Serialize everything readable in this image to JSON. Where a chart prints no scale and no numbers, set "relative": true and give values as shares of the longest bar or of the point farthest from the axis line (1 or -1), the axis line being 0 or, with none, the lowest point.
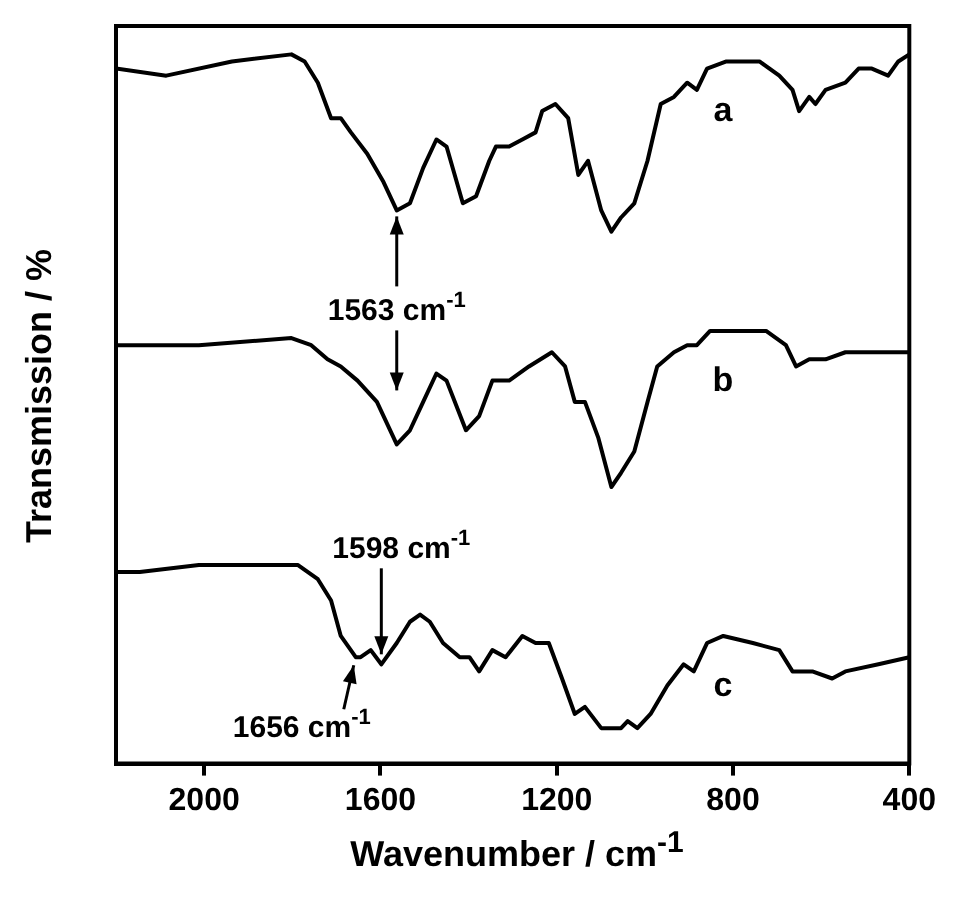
{
  "chart_data": {
    "type": "line",
    "xlabel": "Wavenumber / cm$^{-1}$",
    "ylabel": "Transmission / %",
    "relative": true,
    "xlim": [
      2200,
      400
    ],
    "xticks": [
      2000,
      1600,
      1200,
      800,
      400
    ],
    "grid": false,
    "legend": false,
    "marker": "none",
    "line_style": "solid",
    "series": [
      {
        "name": "a",
        "color": "#000000",
        "x": [
          2200,
          2086,
          1937,
          1802,
          1772,
          1742,
          1712,
          1690,
          1667,
          1630,
          1593,
          1563,
          1533,
          1503,
          1473,
          1450,
          1413,
          1383,
          1353,
          1338,
          1308,
          1278,
          1248,
          1233,
          1203,
          1174,
          1151,
          1129,
          1099,
          1076,
          1054,
          1024,
          994,
          964,
          934,
          904,
          882,
          859,
          815,
          740,
          695,
          665,
          650,
          627,
          613,
          590,
          545,
          515,
          485,
          448,
          425,
          400
        ],
        "values": [
          0.98,
          0.97,
          0.99,
          1.0,
          0.99,
          0.96,
          0.91,
          0.91,
          0.89,
          0.86,
          0.82,
          0.78,
          0.79,
          0.84,
          0.88,
          0.87,
          0.79,
          0.8,
          0.85,
          0.87,
          0.87,
          0.88,
          0.89,
          0.92,
          0.93,
          0.91,
          0.83,
          0.85,
          0.78,
          0.75,
          0.77,
          0.79,
          0.85,
          0.93,
          0.94,
          0.96,
          0.95,
          0.98,
          0.99,
          0.99,
          0.97,
          0.95,
          0.92,
          0.94,
          0.93,
          0.95,
          0.96,
          0.98,
          0.98,
          0.97,
          0.99,
          1.0
        ]
      },
      {
        "name": "b",
        "color": "#000000",
        "x": [
          2200,
          2012,
          1802,
          1757,
          1720,
          1690,
          1652,
          1608,
          1563,
          1533,
          1503,
          1473,
          1450,
          1406,
          1376,
          1346,
          1308,
          1263,
          1211,
          1181,
          1159,
          1136,
          1106,
          1076,
          1054,
          1024,
          994,
          972,
          934,
          904,
          882,
          852,
          800,
          725,
          680,
          657,
          627,
          590,
          545,
          500,
          448,
          400
        ],
        "values": [
          0.59,
          0.59,
          0.6,
          0.59,
          0.57,
          0.56,
          0.54,
          0.51,
          0.45,
          0.47,
          0.51,
          0.55,
          0.54,
          0.47,
          0.49,
          0.54,
          0.54,
          0.56,
          0.58,
          0.56,
          0.51,
          0.51,
          0.46,
          0.39,
          0.41,
          0.44,
          0.51,
          0.56,
          0.58,
          0.59,
          0.59,
          0.61,
          0.61,
          0.61,
          0.59,
          0.56,
          0.57,
          0.57,
          0.58,
          0.58,
          0.58,
          0.58
        ]
      },
      {
        "name": "c",
        "color": "#000000",
        "x": [
          2200,
          2146,
          2012,
          1892,
          1787,
          1742,
          1712,
          1690,
          1656,
          1645,
          1622,
          1598,
          1563,
          1533,
          1510,
          1488,
          1458,
          1420,
          1398,
          1376,
          1346,
          1316,
          1278,
          1248,
          1218,
          1188,
          1159,
          1136,
          1099,
          1054,
          1039,
          1017,
          987,
          949,
          912,
          889,
          859,
          822,
          755,
          695,
          665,
          620,
          575,
          545,
          470,
          400
        ],
        "values": [
          0.27,
          0.27,
          0.28,
          0.28,
          0.28,
          0.26,
          0.23,
          0.18,
          0.15,
          0.15,
          0.16,
          0.14,
          0.17,
          0.2,
          0.21,
          0.2,
          0.17,
          0.15,
          0.15,
          0.13,
          0.16,
          0.15,
          0.18,
          0.17,
          0.17,
          0.12,
          0.07,
          0.08,
          0.05,
          0.05,
          0.06,
          0.05,
          0.07,
          0.11,
          0.14,
          0.13,
          0.17,
          0.18,
          0.17,
          0.16,
          0.13,
          0.13,
          0.12,
          0.13,
          0.14,
          0.15
        ]
      }
    ],
    "annotations": [
      {
        "text": "1563 cm$^{-1}$",
        "x": 1563,
        "y": 0.78
      },
      {
        "text": "1598 cm$^{-1}$",
        "x": 1598,
        "y": 0.14
      },
      {
        "text": "1656 cm$^{-1}$",
        "x": 1656,
        "y": 0.15
      }
    ]
  }
}
